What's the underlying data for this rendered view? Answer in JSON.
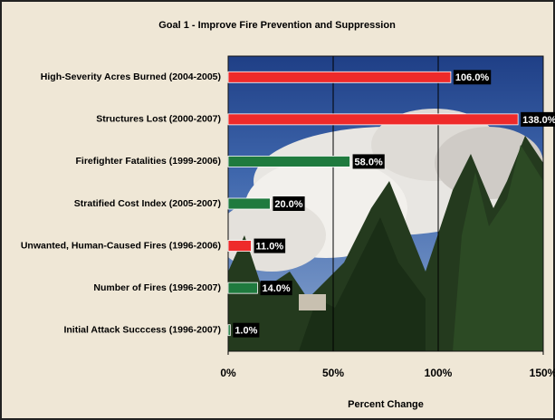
{
  "chart_data": {
    "type": "hbar",
    "title": "Goal 1 - Improve Fire Prevention and Suppression",
    "categories": [
      "High-Severity Acres Burned (2004-2005)",
      "Structures Lost (2000-2007)",
      "Firefighter Fatalities (1999-2006)",
      "Stratified Cost Index (2005-2007)",
      "Unwanted, Human-Caused Fires (1996-2006)",
      "Number of Fires (1996-2007)",
      "Initial Attack Succcess (1996-2007)"
    ],
    "values": [
      106,
      138,
      58,
      20,
      11,
      14,
      1
    ],
    "value_labels": [
      "106.0%",
      "138.0%",
      "58.0%",
      "20.0%",
      "11.0%",
      "14.0%",
      "1.0%"
    ],
    "colors": [
      "#ee2a2a",
      "#ee2a2a",
      "#1f7a3e",
      "#1f7a3e",
      "#ee2a2a",
      "#1f7a3e",
      "#1f7a3e"
    ],
    "xlabel": "Percent Change",
    "xlim": [
      0,
      150
    ],
    "xticks": [
      {
        "value": 0,
        "label": "0%"
      },
      {
        "value": 50,
        "label": "50%"
      },
      {
        "value": 100,
        "label": "100%"
      },
      {
        "value": 150,
        "label": "150%"
      }
    ],
    "grid": true
  }
}
